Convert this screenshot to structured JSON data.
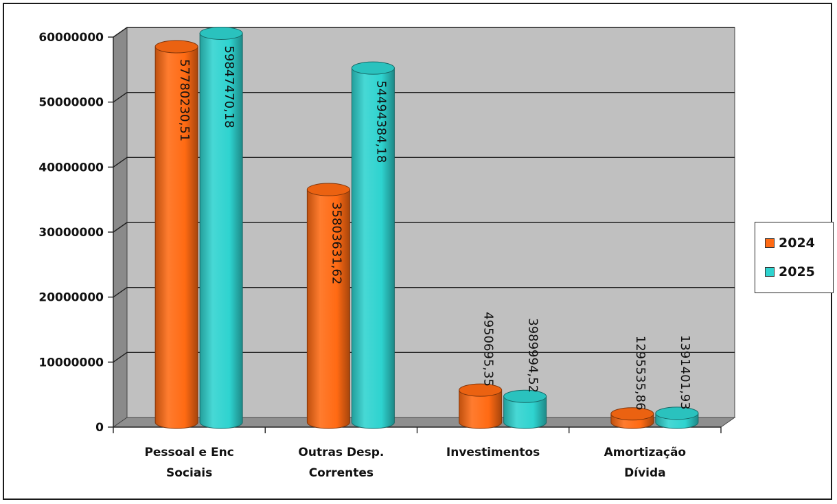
{
  "chart_data": {
    "type": "bar",
    "categories": [
      [
        "Pessoal e Enc",
        "Sociais"
      ],
      [
        "Outras Desp.",
        "Correntes"
      ],
      [
        "Investimentos"
      ],
      [
        "Amortização",
        "Dívida"
      ]
    ],
    "series": [
      {
        "name": "2024",
        "color": "#ff6a13",
        "values": [
          57780230.51,
          35803631.62,
          4950695.35,
          1295535.86
        ],
        "labels": [
          "57780230,51",
          "35803631,62",
          "4950695,35",
          "1295535,86"
        ]
      },
      {
        "name": "2025",
        "color": "#2ed3cf",
        "values": [
          59847470.18,
          54494384.18,
          3989994.52,
          1391401.93
        ],
        "labels": [
          "59847470,18",
          "54494384,18",
          "3989994,52",
          "1391401,93"
        ]
      }
    ],
    "yticks": [
      0,
      10000000,
      20000000,
      30000000,
      40000000,
      50000000,
      60000000
    ],
    "ytick_labels": [
      "0",
      "10000000",
      "20000000",
      "30000000",
      "40000000",
      "50000000",
      "60000000"
    ],
    "ylim": [
      0,
      60000000
    ],
    "grid": true,
    "legend_position": "right",
    "style": "3d-cylinder"
  }
}
